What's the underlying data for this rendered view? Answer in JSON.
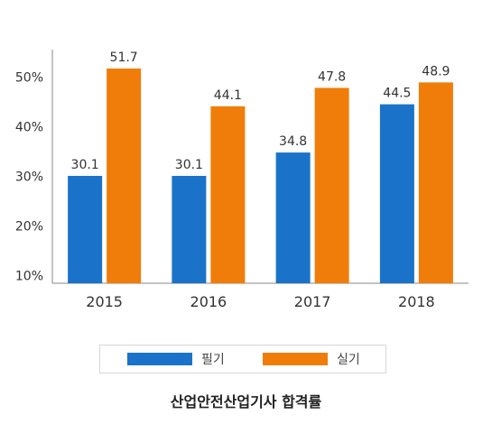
{
  "chart_data": {
    "type": "bar",
    "categories": [
      "2015",
      "2016",
      "2017",
      "2018"
    ],
    "series": [
      {
        "name": "필기",
        "values": [
          30.1,
          30.1,
          34.8,
          44.5
        ],
        "color": "#1a73c8"
      },
      {
        "name": "실기",
        "values": [
          51.7,
          44.1,
          47.8,
          48.9
        ],
        "color": "#f07d0a"
      }
    ],
    "yticks": [
      "10%",
      "20%",
      "30%",
      "40%",
      "50%"
    ],
    "ytick_values": [
      10,
      20,
      30,
      40,
      50
    ],
    "ylim": [
      8.5,
      55.5
    ],
    "title": "산업안전산업기사 합격률",
    "legend_position": "bottom",
    "grid": false
  }
}
